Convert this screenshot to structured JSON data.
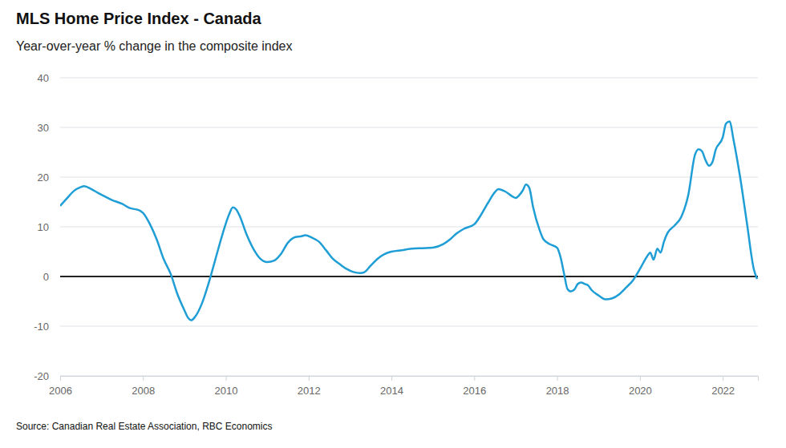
{
  "chart_data": {
    "type": "line",
    "title": "MLS Home Price Index - Canada",
    "subtitle": "Year-over-year % change in the composite index",
    "source": "Source: Canadian Real Estate Association, RBC Economics",
    "color": "#1f9ed6",
    "grid": true,
    "xlim": [
      2006,
      2022.85
    ],
    "xticks": [
      2006,
      2008,
      2010,
      2012,
      2014,
      2016,
      2018,
      2020,
      2022
    ],
    "ylim": [
      -20,
      40
    ],
    "yticks": [
      -20,
      -10,
      0,
      10,
      20,
      30,
      40
    ],
    "x": [
      2006.0,
      2006.17,
      2006.33,
      2006.5,
      2006.58,
      2006.75,
      2006.92,
      2007.08,
      2007.25,
      2007.5,
      2007.67,
      2007.92,
      2008.0,
      2008.17,
      2008.33,
      2008.5,
      2008.67,
      2008.83,
      2009.0,
      2009.08,
      2009.17,
      2009.25,
      2009.42,
      2009.58,
      2009.75,
      2009.92,
      2010.08,
      2010.17,
      2010.25,
      2010.33,
      2010.5,
      2010.67,
      2010.83,
      2011.0,
      2011.17,
      2011.33,
      2011.5,
      2011.67,
      2011.83,
      2011.92,
      2012.08,
      2012.25,
      2012.42,
      2012.58,
      2012.75,
      2012.92,
      2013.08,
      2013.25,
      2013.33,
      2013.5,
      2013.67,
      2013.83,
      2014.0,
      2014.25,
      2014.5,
      2014.75,
      2015.0,
      2015.25,
      2015.42,
      2015.58,
      2015.75,
      2016.0,
      2016.17,
      2016.33,
      2016.5,
      2016.58,
      2016.75,
      2016.92,
      2017.0,
      2017.08,
      2017.17,
      2017.25,
      2017.33,
      2017.42,
      2017.58,
      2017.67,
      2017.83,
      2018.0,
      2018.08,
      2018.17,
      2018.25,
      2018.33,
      2018.42,
      2018.5,
      2018.58,
      2018.67,
      2018.75,
      2018.83,
      2019.0,
      2019.17,
      2019.33,
      2019.5,
      2019.67,
      2019.83,
      2020.0,
      2020.17,
      2020.25,
      2020.33,
      2020.42,
      2020.5,
      2020.58,
      2020.67,
      2020.83,
      2021.0,
      2021.17,
      2021.33,
      2021.42,
      2021.5,
      2021.58,
      2021.67,
      2021.75,
      2021.83,
      2022.0,
      2022.08,
      2022.17,
      2022.25,
      2022.42,
      2022.58,
      2022.75,
      2022.83
    ],
    "values": [
      14.2,
      15.8,
      17.2,
      18.0,
      18.2,
      17.6,
      16.8,
      16.1,
      15.4,
      14.6,
      13.8,
      13.3,
      12.8,
      10.5,
      7.5,
      3.5,
      0.5,
      -3.5,
      -6.8,
      -8.2,
      -8.8,
      -8.2,
      -5.5,
      -1.5,
      3.5,
      8.5,
      12.5,
      13.9,
      13.5,
      12.3,
      8.5,
      5.5,
      3.6,
      2.9,
      3.2,
      4.5,
      6.8,
      7.9,
      8.1,
      8.3,
      7.8,
      7.0,
      5.3,
      3.6,
      2.5,
      1.5,
      0.9,
      0.7,
      0.8,
      2.2,
      3.6,
      4.5,
      5.0,
      5.3,
      5.6,
      5.7,
      5.8,
      6.5,
      7.5,
      8.7,
      9.6,
      10.5,
      12.5,
      14.8,
      17.0,
      17.6,
      17.1,
      16.1,
      15.8,
      16.3,
      17.3,
      18.5,
      17.8,
      14.0,
      9.3,
      7.5,
      6.5,
      5.8,
      4.0,
      0.5,
      -2.5,
      -3.0,
      -2.6,
      -1.5,
      -1.2,
      -1.5,
      -1.8,
      -2.7,
      -3.8,
      -4.6,
      -4.4,
      -3.6,
      -2.2,
      -0.8,
      1.5,
      4.0,
      4.8,
      3.4,
      5.6,
      4.8,
      7.0,
      8.8,
      10.2,
      12.0,
      16.5,
      24.5,
      25.6,
      25.2,
      23.5,
      22.3,
      23.0,
      25.5,
      28.0,
      30.8,
      31.2,
      28.0,
      20.0,
      11.0,
      1.5,
      -0.5
    ]
  }
}
